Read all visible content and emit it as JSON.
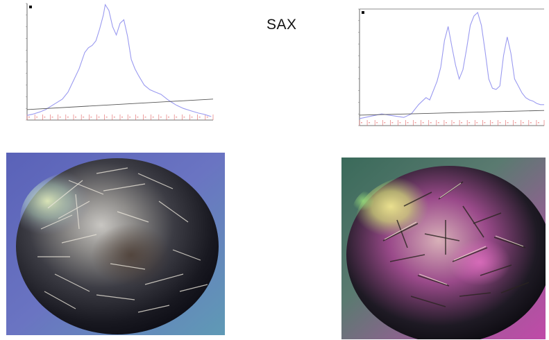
{
  "label": "SAX",
  "chart_data": [
    {
      "type": "line",
      "xlim": [
        0,
        100
      ],
      "ylim": [
        0,
        100
      ],
      "series": [
        {
          "role": "trace",
          "color": "#9a9af0",
          "x": [
            0,
            3,
            7,
            10,
            13,
            16,
            19,
            22,
            25,
            28,
            31,
            33,
            35,
            37,
            39,
            41,
            42,
            44,
            46,
            48,
            50,
            52,
            54,
            56,
            58,
            60,
            63,
            66,
            69,
            72,
            76,
            80,
            84,
            88,
            92,
            95,
            97,
            99
          ],
          "y": [
            4,
            5,
            7,
            9,
            12,
            15,
            18,
            24,
            34,
            44,
            58,
            62,
            64,
            68,
            78,
            90,
            99,
            94,
            80,
            73,
            83,
            86,
            72,
            52,
            44,
            38,
            30,
            26,
            24,
            22,
            17,
            13,
            10,
            8,
            6,
            5,
            4,
            3
          ]
        },
        {
          "role": "baseline",
          "color": "#555555",
          "x": [
            0,
            100
          ],
          "y": [
            9,
            18
          ]
        }
      ]
    },
    {
      "type": "line",
      "xlim": [
        0,
        100
      ],
      "ylim": [
        0,
        100
      ],
      "series": [
        {
          "role": "trace",
          "color": "#9a9af0",
          "x": [
            0,
            6,
            12,
            16,
            20,
            24,
            28,
            32,
            34,
            36,
            38,
            42,
            44,
            46,
            48,
            50,
            52,
            54,
            56,
            58,
            60,
            62,
            64,
            66,
            68,
            70,
            72,
            74,
            76,
            78,
            80,
            82,
            84,
            86,
            88,
            90,
            92,
            94,
            96,
            98,
            100
          ],
          "y": [
            6,
            8,
            10,
            9,
            8,
            7,
            10,
            18,
            21,
            24,
            22,
            38,
            50,
            73,
            85,
            68,
            52,
            40,
            48,
            66,
            86,
            94,
            97,
            86,
            64,
            40,
            32,
            31,
            34,
            60,
            76,
            62,
            40,
            34,
            28,
            24,
            22,
            21,
            19,
            18,
            18
          ]
        },
        {
          "role": "baseline",
          "color": "#555555",
          "x": [
            0,
            100
          ],
          "y": [
            9,
            13
          ]
        }
      ]
    }
  ]
}
